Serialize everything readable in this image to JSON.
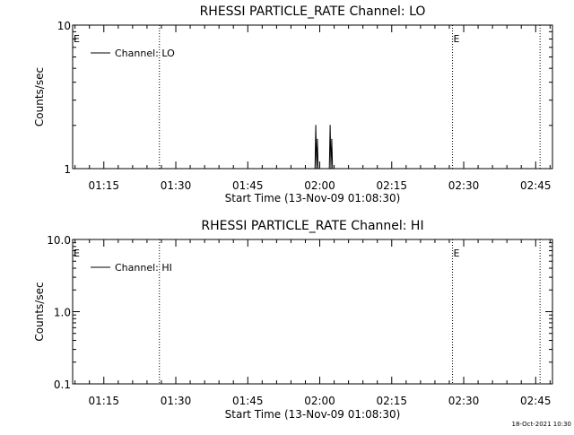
{
  "colors": {
    "background": "#ffffff",
    "foreground": "#000000"
  },
  "timestamp": "18-Oct-2021 10:30",
  "chart_data": [
    {
      "type": "line",
      "title": "RHESSI PARTICLE_RATE Channel: LO",
      "xlabel": "Start Time (13-Nov-09 01:08:30)",
      "ylabel": "Counts/sec",
      "y_scale": "log",
      "ylim": [
        1,
        10
      ],
      "xlim": [
        "01:08:30",
        "02:48:30"
      ],
      "x_ticks": [
        "01:15",
        "01:30",
        "01:45",
        "02:00",
        "02:15",
        "02:30",
        "02:45"
      ],
      "y_ticks": [
        "1",
        "10"
      ],
      "grid": false,
      "legend": {
        "position": "top-left",
        "entries": [
          "Channel: LO"
        ]
      },
      "series": [
        {
          "name": "Channel: LO",
          "points": [
            {
              "x": "01:59:00",
              "y": 1
            },
            {
              "x": "01:59:10",
              "y": 2
            },
            {
              "x": "01:59:20",
              "y": 1
            },
            {
              "x": "01:59:30",
              "y": 1.6
            },
            {
              "x": "01:59:40",
              "y": 1
            },
            {
              "x": "02:02:00",
              "y": 1
            },
            {
              "x": "02:02:10",
              "y": 2
            },
            {
              "x": "02:02:20",
              "y": 1
            },
            {
              "x": "02:02:30",
              "y": 1.6
            },
            {
              "x": "02:02:40",
              "y": 1
            }
          ]
        }
      ],
      "markers": [
        {
          "x": "01:26:35",
          "label": ""
        },
        {
          "x": "02:27:40",
          "label": "E"
        },
        {
          "x": "02:45:55",
          "label": ""
        }
      ],
      "left_annotation": "E"
    },
    {
      "type": "line",
      "title": "RHESSI PARTICLE_RATE Channel: HI",
      "xlabel": "Start Time (13-Nov-09 01:08:30)",
      "ylabel": "Counts/sec",
      "y_scale": "log",
      "ylim": [
        0.1,
        10
      ],
      "xlim": [
        "01:08:30",
        "02:48:30"
      ],
      "x_ticks": [
        "01:15",
        "01:30",
        "01:45",
        "02:00",
        "02:15",
        "02:30",
        "02:45"
      ],
      "y_ticks": [
        "0.1",
        "1.0",
        "10.0"
      ],
      "grid": false,
      "legend": {
        "position": "top-left",
        "entries": [
          "Channel: HI"
        ]
      },
      "series": [
        {
          "name": "Channel: HI",
          "points": []
        }
      ],
      "markers": [
        {
          "x": "01:26:35",
          "label": ""
        },
        {
          "x": "02:27:40",
          "label": "E"
        },
        {
          "x": "02:45:55",
          "label": ""
        }
      ],
      "left_annotation": "E"
    }
  ]
}
